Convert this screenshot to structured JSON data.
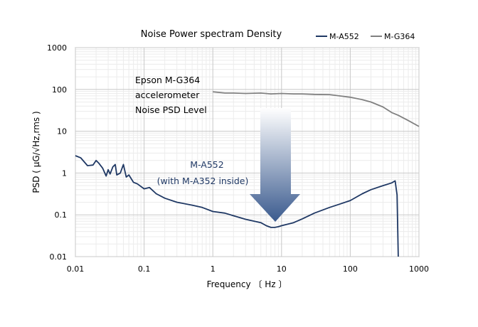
{
  "chart_data": {
    "type": "line",
    "title": "Noise Power spectram Density",
    "xlabel": "Frequency 〔 Hz 〕",
    "ylabel": "PSD ( μG/√Hz,rms )",
    "x_scale": "log",
    "y_scale": "log",
    "xlim": [
      0.01,
      1000
    ],
    "ylim": [
      0.01,
      1000
    ],
    "x_ticks": [
      "0.01",
      "0.1",
      "1",
      "10",
      "100",
      "1000"
    ],
    "y_ticks": [
      "0.01",
      "0.1",
      "1",
      "10",
      "100",
      "1000"
    ],
    "grid": true,
    "legend_position": "top-right",
    "series": [
      {
        "name": "M-A552",
        "color": "#1f3864",
        "points": [
          [
            0.01,
            2.6
          ],
          [
            0.012,
            2.3
          ],
          [
            0.015,
            1.5
          ],
          [
            0.018,
            1.55
          ],
          [
            0.02,
            2.0
          ],
          [
            0.022,
            1.7
          ],
          [
            0.025,
            1.3
          ],
          [
            0.028,
            0.85
          ],
          [
            0.03,
            1.2
          ],
          [
            0.032,
            0.95
          ],
          [
            0.035,
            1.4
          ],
          [
            0.038,
            1.6
          ],
          [
            0.04,
            0.9
          ],
          [
            0.045,
            1.0
          ],
          [
            0.05,
            1.6
          ],
          [
            0.055,
            0.8
          ],
          [
            0.06,
            0.9
          ],
          [
            0.07,
            0.6
          ],
          [
            0.08,
            0.55
          ],
          [
            0.1,
            0.42
          ],
          [
            0.12,
            0.45
          ],
          [
            0.15,
            0.32
          ],
          [
            0.2,
            0.25
          ],
          [
            0.3,
            0.2
          ],
          [
            0.5,
            0.17
          ],
          [
            0.7,
            0.15
          ],
          [
            1,
            0.12
          ],
          [
            1.5,
            0.11
          ],
          [
            2,
            0.095
          ],
          [
            3,
            0.078
          ],
          [
            5,
            0.065
          ],
          [
            6,
            0.055
          ],
          [
            7,
            0.05
          ],
          [
            8,
            0.05
          ],
          [
            9,
            0.052
          ],
          [
            10,
            0.055
          ],
          [
            15,
            0.065
          ],
          [
            20,
            0.08
          ],
          [
            30,
            0.11
          ],
          [
            50,
            0.15
          ],
          [
            70,
            0.18
          ],
          [
            100,
            0.22
          ],
          [
            150,
            0.32
          ],
          [
            200,
            0.4
          ],
          [
            300,
            0.5
          ],
          [
            400,
            0.58
          ],
          [
            450,
            0.65
          ],
          [
            480,
            0.3
          ],
          [
            500,
            0.01
          ]
        ]
      },
      {
        "name": "M-G364",
        "color": "#808080",
        "points": [
          [
            1,
            88
          ],
          [
            1.5,
            82
          ],
          [
            2,
            82
          ],
          [
            3,
            80
          ],
          [
            5,
            82
          ],
          [
            7,
            78
          ],
          [
            10,
            80
          ],
          [
            15,
            78
          ],
          [
            20,
            78
          ],
          [
            30,
            76
          ],
          [
            50,
            75
          ],
          [
            70,
            70
          ],
          [
            100,
            65
          ],
          [
            150,
            57
          ],
          [
            200,
            50
          ],
          [
            300,
            38
          ],
          [
            400,
            28
          ],
          [
            500,
            24
          ],
          [
            700,
            18
          ],
          [
            1000,
            13
          ]
        ]
      }
    ],
    "annotations": {
      "gray_lines": [
        "Epson M-G364",
        "accelerometer",
        "Noise PSD Level"
      ],
      "blue_lines": [
        "M-A552",
        "(with M-A352 inside)"
      ]
    }
  }
}
